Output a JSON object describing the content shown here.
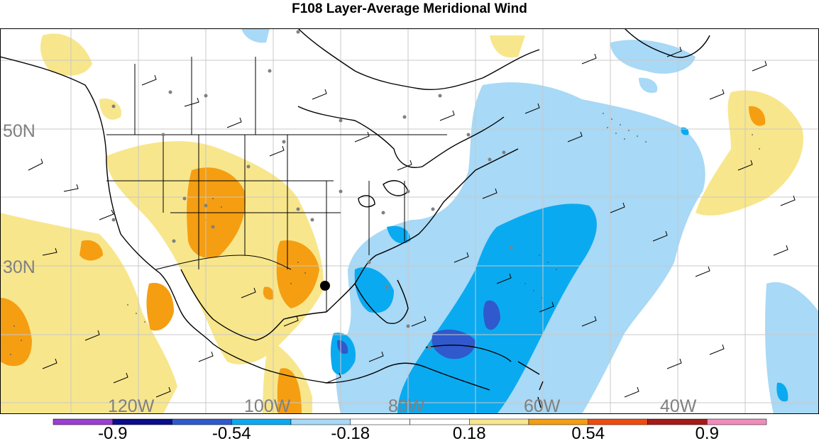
{
  "title": "F108 Layer-Average Meridional Wind",
  "map": {
    "latitude_labels": [
      "50N",
      "30N"
    ],
    "longitude_labels": [
      "120W",
      "100W",
      "80W",
      "60W",
      "40W"
    ],
    "label_color": "#808080",
    "grid_color": "#c8c8c8",
    "marker": "storm-center-dot"
  },
  "colorbar": {
    "tick_labels": [
      "-0.9",
      "-0.54",
      "-0.18",
      "0.18",
      "0.54",
      "0.9"
    ],
    "colors": [
      "#9a3fd0",
      "#0a0e8c",
      "#2f59cc",
      "#0aaaf0",
      "#a8d9f6",
      "#ffffff",
      "#ffffff",
      "#f8e68c",
      "#f59e12",
      "#f04a10",
      "#a61a18",
      "#f08cbc"
    ]
  }
}
